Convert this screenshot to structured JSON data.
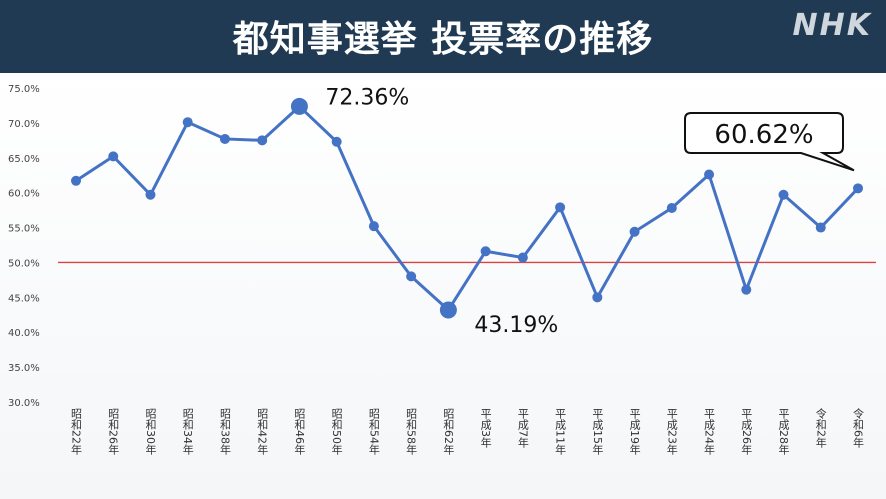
{
  "header": {
    "title": "都知事選挙 投票率の推移",
    "logo": "NHK"
  },
  "colors": {
    "header_bg": "#1f3a52",
    "line": "#4472c4",
    "reference_line": "#e04040"
  },
  "chart_data": {
    "type": "line",
    "ylim": [
      30,
      75
    ],
    "yticks": [
      "30.0%",
      "35.0%",
      "40.0%",
      "45.0%",
      "50.0%",
      "55.0%",
      "60.0%",
      "65.0%",
      "70.0%",
      "75.0%"
    ],
    "y_unit": "%",
    "grid": false,
    "reference_line": 50,
    "categories": [
      "昭和22年",
      "昭和26年",
      "昭和30年",
      "昭和34年",
      "昭和38年",
      "昭和42年",
      "昭和46年",
      "昭和50年",
      "昭和54年",
      "昭和58年",
      "昭和62年",
      "平成3年",
      "平成7年",
      "平成11年",
      "平成15年",
      "平成19年",
      "平成23年",
      "平成24年",
      "平成26年",
      "平成28年",
      "令和2年",
      "令和6年"
    ],
    "values": [
      61.7,
      65.2,
      59.7,
      70.1,
      67.7,
      67.5,
      72.36,
      67.3,
      55.2,
      48.0,
      43.19,
      51.6,
      50.7,
      57.9,
      45.0,
      54.4,
      57.8,
      62.6,
      46.1,
      59.7,
      55.0,
      60.62
    ],
    "annotations": [
      {
        "category": "昭和46年",
        "label": "72.36%",
        "style": "plain"
      },
      {
        "category": "昭和62年",
        "label": "43.19%",
        "style": "plain"
      },
      {
        "category": "令和6年",
        "label": "60.62%",
        "style": "callout"
      }
    ]
  }
}
